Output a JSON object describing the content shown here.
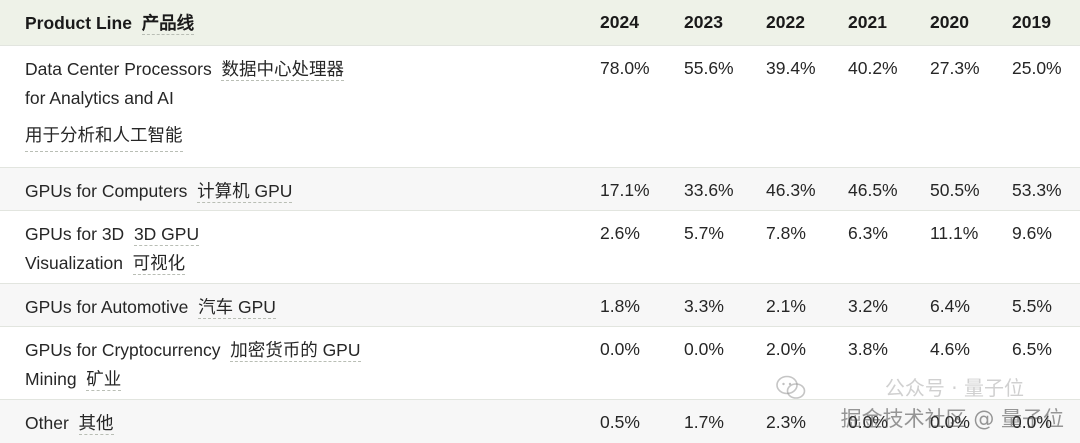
{
  "table": {
    "header": {
      "label_en": "Product Line",
      "label_zh": "产品线",
      "years": [
        "2024",
        "2023",
        "2022",
        "2021",
        "2020",
        "2019"
      ]
    },
    "rows": [
      {
        "en_1": "Data Center Processors",
        "zh_1": "数据中心处理器",
        "en_2": "for Analytics and AI",
        "zh_2": "用于分析和人工智能",
        "values": [
          "78.0%",
          "55.6%",
          "39.4%",
          "40.2%",
          "27.3%",
          "25.0%"
        ]
      },
      {
        "en_1": "GPUs for Computers",
        "zh_1": "计算机 GPU",
        "values": [
          "17.1%",
          "33.6%",
          "46.3%",
          "46.5%",
          "50.5%",
          "53.3%"
        ]
      },
      {
        "en_1": "GPUs for 3D",
        "zh_1": "3D GPU",
        "en_2": "Visualization",
        "zh_2": "可视化",
        "values": [
          "2.6%",
          "5.7%",
          "7.8%",
          "6.3%",
          "11.1%",
          "9.6%"
        ]
      },
      {
        "en_1": "GPUs for Automotive",
        "zh_1": "汽车 GPU",
        "values": [
          "1.8%",
          "3.3%",
          "2.1%",
          "3.2%",
          "6.4%",
          "5.5%"
        ]
      },
      {
        "en_1": "GPUs for Cryptocurrency",
        "zh_1": "加密货币的 GPU",
        "en_2": "Mining",
        "zh_2": "矿业",
        "values": [
          "0.0%",
          "0.0%",
          "2.0%",
          "3.8%",
          "4.6%",
          "6.5%"
        ]
      },
      {
        "en_1": "Other",
        "zh_1": "其他",
        "values": [
          "0.5%",
          "1.7%",
          "2.3%",
          "0.0%",
          "0.0%",
          "0.0%"
        ]
      }
    ]
  },
  "watermark": {
    "line_1": "公众号 · 量子位",
    "line_2": "掘金技术社区 @ 量子位",
    "icon": "wechat-icon"
  }
}
